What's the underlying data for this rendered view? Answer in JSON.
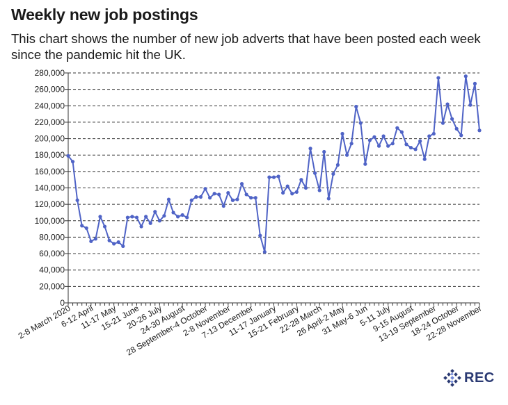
{
  "title": "Weekly new job postings",
  "subtitle": "This chart shows the number of new job adverts that have been posted each week since the pandemic hit the UK.",
  "logo_text": "REC",
  "colors": {
    "line": "#4f63c6",
    "grid": "#333333",
    "text": "#1a1a1a",
    "logo": "#2b3a73"
  },
  "chart_data": {
    "type": "line",
    "title": "Weekly new job postings",
    "ylim": [
      0,
      280000
    ],
    "y_ticks": [
      "0",
      "20,000",
      "40,000",
      "60,000",
      "80,000",
      "100,000",
      "120,000",
      "140,000",
      "160,000",
      "180,000",
      "200,000",
      "220,000",
      "240,000",
      "260,000",
      "280,000"
    ],
    "y_tick_values": [
      0,
      20000,
      40000,
      60000,
      80000,
      100000,
      120000,
      140000,
      160000,
      180000,
      200000,
      220000,
      240000,
      260000,
      280000
    ],
    "x_tick_labels": [
      {
        "label": "2-8 March 2020",
        "index": 0
      },
      {
        "label": "6-12 April",
        "index": 5
      },
      {
        "label": "11-17 May",
        "index": 10
      },
      {
        "label": "15-21 June",
        "index": 15
      },
      {
        "label": "20-26 July",
        "index": 20
      },
      {
        "label": "24-30 August",
        "index": 25
      },
      {
        "label": "28 September-4 October",
        "index": 30
      },
      {
        "label": "2-8 November",
        "index": 35
      },
      {
        "label": "7-13 December",
        "index": 40
      },
      {
        "label": "11-17 January",
        "index": 45
      },
      {
        "label": "15-21 February",
        "index": 50
      },
      {
        "label": "22-28 March",
        "index": 55
      },
      {
        "label": "26 April-2 May",
        "index": 60
      },
      {
        "label": "31 May-6 Jun",
        "index": 65
      },
      {
        "label": "5-11 July",
        "index": 70
      },
      {
        "label": "9-15 August",
        "index": 75
      },
      {
        "label": "13-19 September",
        "index": 80
      },
      {
        "label": "18-24 October",
        "index": 85
      },
      {
        "label": "22-28 November",
        "index": 90
      }
    ],
    "grid": true,
    "series": [
      {
        "values": [
          179000,
          172000,
          125000,
          94000,
          91000,
          75000,
          78000,
          105000,
          93000,
          76000,
          72000,
          74000,
          69000,
          104000,
          105000,
          104000,
          93000,
          105000,
          97000,
          111000,
          100000,
          106000,
          126000,
          110000,
          105000,
          107000,
          104000,
          125000,
          129000,
          129000,
          139000,
          128000,
          133000,
          132000,
          118000,
          134000,
          125000,
          126000,
          145000,
          132000,
          128000,
          128000,
          82000,
          62000,
          153000,
          153000,
          154000,
          134000,
          142000,
          133000,
          135000,
          150000,
          140000,
          188000,
          158000,
          137000,
          184000,
          127000,
          157000,
          168000,
          206000,
          180000,
          194000,
          239000,
          219000,
          169000,
          198000,
          202000,
          191000,
          203000,
          191000,
          194000,
          213000,
          208000,
          193000,
          189000,
          187000,
          197000,
          175000,
          203000,
          206000,
          274000,
          219000,
          242000,
          224000,
          212000,
          204000,
          276000,
          241000,
          267000,
          210000
        ]
      }
    ]
  }
}
